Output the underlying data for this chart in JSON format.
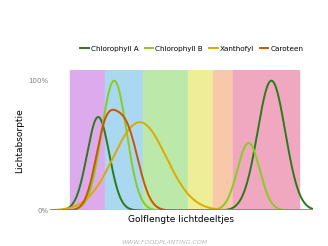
{
  "title": "",
  "xlabel": "Golflengte lichtdeeltjes",
  "ylabel": "Lichtabsorptie",
  "watermark": "WWW.FOODPLANTING.COM",
  "legend_labels": [
    "Chlorophyll A",
    "Chlorophyll B",
    "Xanthofyl",
    "Caroteen"
  ],
  "legend_colors": [
    "#2a7a1a",
    "#88cc22",
    "#ddaa00",
    "#cc5500"
  ],
  "bg_bands": [
    {
      "xmin": 390,
      "xmax": 440,
      "color": "#ddaaee"
    },
    {
      "xmin": 440,
      "xmax": 495,
      "color": "#aad8f0"
    },
    {
      "xmin": 495,
      "xmax": 560,
      "color": "#bce8aa"
    },
    {
      "xmin": 560,
      "xmax": 595,
      "color": "#eeee99"
    },
    {
      "xmin": 595,
      "xmax": 625,
      "color": "#f8c8aa"
    },
    {
      "xmin": 625,
      "xmax": 720,
      "color": "#f0a8c0"
    }
  ],
  "ylim": [
    0,
    1.08
  ],
  "xlim": [
    360,
    740
  ],
  "ytick_labels": [
    "0%",
    "100%"
  ],
  "ytick_positions": [
    0,
    1.0
  ],
  "figsize": [
    3.28,
    2.46
  ],
  "dpi": 100
}
